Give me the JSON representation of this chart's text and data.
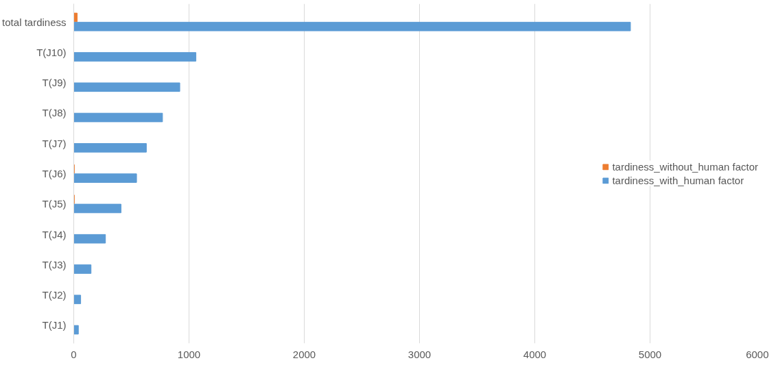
{
  "chart_data": {
    "type": "bar",
    "orientation": "horizontal",
    "categories": [
      "total tardiness",
      "T(J10)",
      "T(J9)",
      "T(J8)",
      "T(J7)",
      "T(J6)",
      "T(J5)",
      "T(J4)",
      "T(J3)",
      "T(J2)",
      "T(J1)"
    ],
    "series": [
      {
        "name": "tardiness_without_human factor",
        "color": "#ed7d31",
        "values": [
          30,
          0,
          0,
          0,
          0,
          5,
          5,
          0,
          0,
          0,
          0
        ]
      },
      {
        "name": "tardiness_with_human factor",
        "color": "#5b9bd5",
        "values": [
          4830,
          1060,
          920,
          770,
          630,
          545,
          410,
          275,
          150,
          60,
          40
        ]
      }
    ],
    "xlim": [
      0,
      6000
    ],
    "xticks": [
      0,
      1000,
      2000,
      3000,
      4000,
      5000,
      6000
    ],
    "grid": "x",
    "legend": "right"
  }
}
